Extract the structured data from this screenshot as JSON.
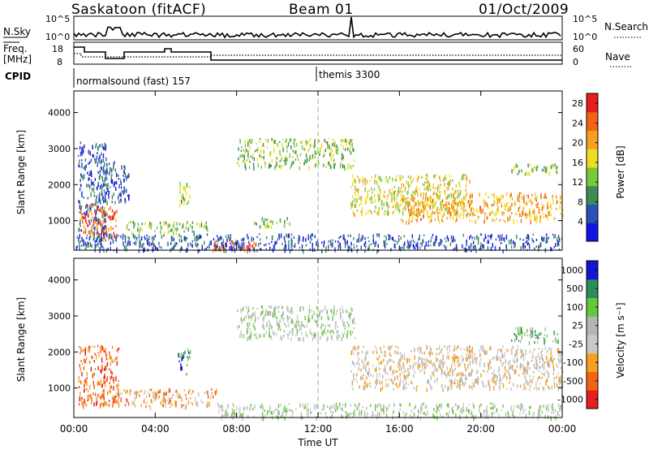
{
  "header": {
    "station": "Saskatoon (fitACF)",
    "beam": "Beam 01",
    "date": "01/Oct/2009"
  },
  "top_panel": {
    "left_label": "N.Sky",
    "right_label": "N.Search",
    "left_ticks": [
      "10^5",
      "10^0"
    ],
    "right_ticks": [
      "10^5",
      "10^0"
    ]
  },
  "freq_panel": {
    "left_label_line1": "Freq.",
    "left_label_line2": "[MHz]",
    "right_label": "Nave",
    "left_ticks": [
      "18",
      "8"
    ],
    "right_ticks": [
      "60",
      "0"
    ]
  },
  "cpid": {
    "label": "CPID",
    "segments": [
      {
        "name": "normalsound (fast) 157"
      },
      {
        "name": "themis 3300"
      }
    ]
  },
  "x_axis": {
    "label": "Time UT",
    "ticks": [
      "00:00",
      "04:00",
      "08:00",
      "12:00",
      "16:00",
      "20:00",
      "00:00"
    ]
  },
  "chart_data": [
    {
      "type": "heatmap",
      "title": "Power",
      "xlabel": "Time UT",
      "ylabel": "Slant Range [km]",
      "yticks": [
        "1000",
        "2000",
        "3000",
        "4000"
      ],
      "ylim": [
        180,
        4600
      ],
      "xlim_hours": [
        0,
        24
      ],
      "colorbar": {
        "label": "Power [dB]",
        "ticks": [
          "4",
          "8",
          "12",
          "16",
          "20",
          "24",
          "28"
        ],
        "range": [
          0,
          30
        ],
        "colors": [
          "#1414e6",
          "#2d50b4",
          "#3c8c5a",
          "#78c83c",
          "#f0dc1e",
          "#f5a01e",
          "#f06414",
          "#e61e1e"
        ]
      },
      "echo_regions": [
        {
          "t0": 0.2,
          "t1": 1.6,
          "r0": 300,
          "r1": 3200,
          "level": 1
        },
        {
          "t0": 0.3,
          "t1": 1.4,
          "r0": 650,
          "r1": 1500,
          "level": 6
        },
        {
          "t0": 1.3,
          "t1": 2.1,
          "r0": 500,
          "r1": 1400,
          "level": 6
        },
        {
          "t0": 1.3,
          "t1": 2.7,
          "r0": 1500,
          "r1": 2700,
          "level": 1
        },
        {
          "t0": 5.1,
          "t1": 5.7,
          "r0": 1400,
          "r1": 2100,
          "level": 3
        },
        {
          "t0": 2.5,
          "t1": 6.6,
          "r0": 700,
          "r1": 1000,
          "level": 3
        },
        {
          "t0": 6.8,
          "t1": 9.0,
          "r0": 200,
          "r1": 500,
          "level": 6
        },
        {
          "t0": 8.6,
          "t1": 10.6,
          "r0": 850,
          "r1": 1100,
          "level": 3
        },
        {
          "t0": 8.0,
          "t1": 13.8,
          "r0": 2500,
          "r1": 3300,
          "level": 3
        },
        {
          "t0": 13.6,
          "t1": 19.5,
          "r0": 1200,
          "r1": 2300,
          "level": 4
        },
        {
          "t0": 16.0,
          "t1": 24.0,
          "r0": 1000,
          "r1": 1800,
          "level": 5
        },
        {
          "t0": 21.4,
          "t1": 23.8,
          "r0": 2300,
          "r1": 2600,
          "level": 3
        },
        {
          "t0": 0.1,
          "t1": 24.0,
          "r0": 200,
          "r1": 650,
          "level": 1
        }
      ]
    },
    {
      "type": "heatmap",
      "title": "Velocity",
      "xlabel": "Time UT",
      "ylabel": "Slant Range [km]",
      "yticks": [
        "1000",
        "2000",
        "3000",
        "4000"
      ],
      "ylim": [
        180,
        4600
      ],
      "xlim_hours": [
        0,
        24
      ],
      "colorbar": {
        "label": "Velocity [m s⁻¹]",
        "ticks": [
          "1000",
          "500",
          "100",
          "25",
          "-25",
          "-100",
          "-500",
          "-1000"
        ],
        "colors": [
          "#1414d2",
          "#2d8c5a",
          "#64c83c",
          "#b4b4b4",
          "#c8c8c8",
          "#f5a01e",
          "#f06414",
          "#e61e1e"
        ]
      },
      "echo_regions": [
        {
          "t0": 0.2,
          "t1": 2.2,
          "r0": 500,
          "r1": 2200,
          "level": 6
        },
        {
          "t0": 1.9,
          "t1": 7.0,
          "r0": 500,
          "r1": 1000,
          "level": 5
        },
        {
          "t0": 5.1,
          "t1": 5.7,
          "r0": 1400,
          "r1": 2100,
          "level": 1
        },
        {
          "t0": 7.0,
          "t1": 24.0,
          "r0": 200,
          "r1": 600,
          "level": 3
        },
        {
          "t0": 8.0,
          "t1": 13.8,
          "r0": 2400,
          "r1": 3300,
          "level": 3
        },
        {
          "t0": 13.6,
          "t1": 24.0,
          "r0": 1000,
          "r1": 2200,
          "level": 4
        },
        {
          "t0": 21.4,
          "t1": 23.8,
          "r0": 2300,
          "r1": 2700,
          "level": 2
        }
      ]
    }
  ]
}
